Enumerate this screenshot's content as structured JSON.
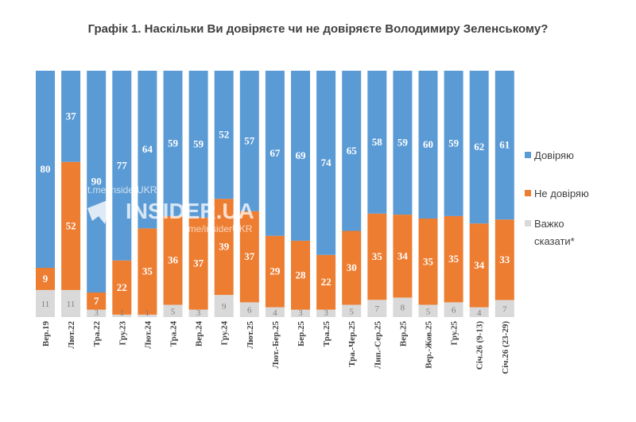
{
  "chart_data": {
    "type": "bar",
    "stacked": true,
    "normalized": true,
    "title": "Графік 1. Наскільки Ви довіряєте чи не довіряєте Володимиру Зеленському?",
    "categories": [
      "Вер.19",
      "Лют.22",
      "Тра.22",
      "Гру.23",
      "Лют.24",
      "Тра.24",
      "Вер.24",
      "Гру.24",
      "Лют.25",
      "Лют.-Бер.25",
      "Бер.25",
      "Тра.25",
      "Тра.-Чер.25",
      "Лип.-Сер.25",
      "Вер.25",
      "Вер.-Жов.25",
      "Гру.25",
      "Січ.26 (9-13)",
      "Січ.26 (23-29)"
    ],
    "series": [
      {
        "name": "Довіряю",
        "color": "#5b9bd5",
        "values": [
          80,
          37,
          90,
          77,
          64,
          59,
          59,
          52,
          57,
          67,
          69,
          74,
          65,
          58,
          59,
          60,
          59,
          62,
          61
        ]
      },
      {
        "name": "Не довіряю",
        "color": "#ed7d31",
        "values": [
          9,
          52,
          7,
          22,
          35,
          36,
          37,
          39,
          37,
          29,
          28,
          22,
          30,
          35,
          34,
          35,
          35,
          34,
          33
        ]
      },
      {
        "name": "Важко сказати*",
        "color": "#d9d9d9",
        "values": [
          11,
          11,
          3,
          1,
          1,
          5,
          3,
          9,
          6,
          4,
          3,
          3,
          5,
          7,
          8,
          5,
          6,
          4,
          7
        ]
      }
    ],
    "ylim": [
      0,
      100
    ],
    "legend_position": "right",
    "watermark": {
      "logo": "INSIDER.UA",
      "handle1": "t.me/insiderUKR",
      "handle2": "t.me/insiderUKR"
    }
  }
}
